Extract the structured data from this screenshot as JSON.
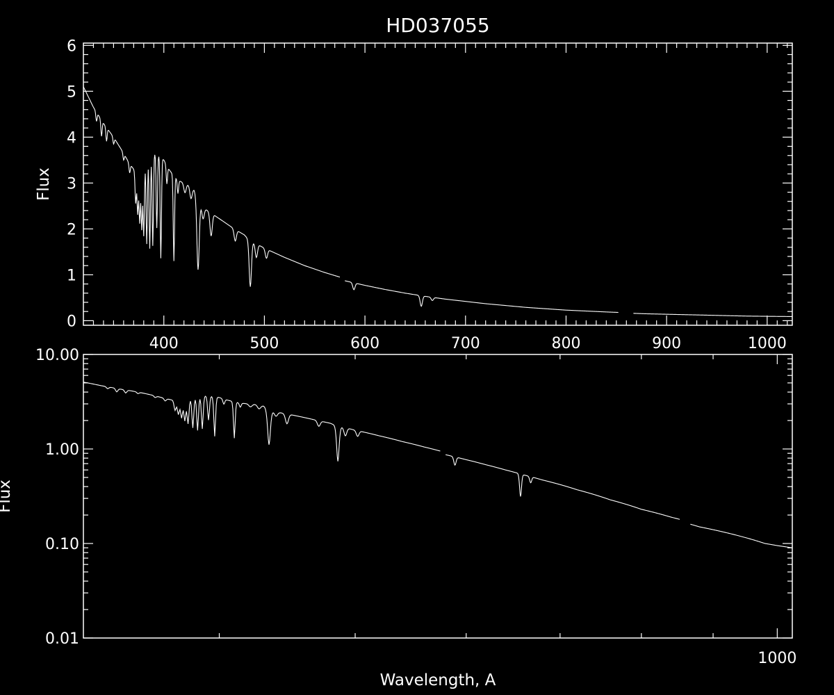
{
  "title": "HD037055",
  "colors": {
    "background": "#000000",
    "foreground": "#ffffff"
  },
  "chart_data": [
    {
      "type": "line",
      "name": "linear-panel",
      "title": "HD037055",
      "xlabel": "",
      "ylabel": "Flux",
      "xlim": [
        320,
        1025
      ],
      "ylim": [
        -0.1,
        6.05
      ],
      "yscale": "linear",
      "grid": false,
      "xticks": [
        {
          "value": 400,
          "label": "400"
        },
        {
          "value": 500,
          "label": "500"
        },
        {
          "value": 600,
          "label": "600"
        },
        {
          "value": 700,
          "label": "700"
        },
        {
          "value": 800,
          "label": "800"
        },
        {
          "value": 900,
          "label": "900"
        },
        {
          "value": 1000,
          "label": "1000"
        }
      ],
      "yticks": [
        {
          "value": 0,
          "label": "0"
        },
        {
          "value": 1,
          "label": "1"
        },
        {
          "value": 2,
          "label": "2"
        },
        {
          "value": 3,
          "label": "3"
        },
        {
          "value": 4,
          "label": "4"
        },
        {
          "value": 5,
          "label": "5"
        },
        {
          "value": 6,
          "label": "6"
        }
      ],
      "series": [
        {
          "segments": [
            [
              [
                320,
                5.1
              ],
              [
                330,
                4.65
              ],
              [
                340,
                4.3
              ],
              [
                350,
                4.0
              ],
              [
                360,
                3.65
              ],
              [
                365,
                3.45
              ],
              [
                370,
                3.3
              ],
              [
                375,
                3.2
              ],
              [
                380,
                3.35
              ],
              [
                385,
                3.55
              ],
              [
                390,
                3.65
              ],
              [
                395,
                3.6
              ],
              [
                400,
                3.5
              ],
              [
                405,
                3.3
              ],
              [
                410,
                3.15
              ],
              [
                415,
                3.05
              ],
              [
                420,
                3.0
              ],
              [
                425,
                2.95
              ],
              [
                430,
                2.85
              ],
              [
                435,
                2.55
              ],
              [
                440,
                2.45
              ],
              [
                450,
                2.3
              ],
              [
                460,
                2.15
              ],
              [
                470,
                2.0
              ],
              [
                480,
                1.87
              ],
              [
                485,
                1.75
              ],
              [
                490,
                1.7
              ],
              [
                500,
                1.58
              ],
              [
                520,
                1.38
              ],
              [
                540,
                1.2
              ],
              [
                560,
                1.05
              ],
              [
                575,
                0.95
              ]
            ],
            [
              [
                580,
                0.87
              ],
              [
                600,
                0.77
              ],
              [
                620,
                0.68
              ],
              [
                640,
                0.6
              ],
              [
                660,
                0.53
              ],
              [
                680,
                0.47
              ],
              [
                700,
                0.42
              ],
              [
                720,
                0.37
              ],
              [
                740,
                0.33
              ],
              [
                760,
                0.29
              ],
              [
                780,
                0.26
              ],
              [
                800,
                0.23
              ],
              [
                820,
                0.21
              ],
              [
                840,
                0.19
              ],
              [
                852,
                0.18
              ]
            ],
            [
              [
                867,
                0.16
              ],
              [
                880,
                0.15
              ],
              [
                900,
                0.14
              ],
              [
                920,
                0.13
              ],
              [
                940,
                0.12
              ],
              [
                960,
                0.11
              ],
              [
                980,
                0.1
              ],
              [
                1000,
                0.095
              ],
              [
                1025,
                0.09
              ]
            ]
          ]
        }
      ],
      "absorption_lines": [
        {
          "x": 333,
          "depth": 0.2
        },
        {
          "x": 338,
          "depth": 0.35
        },
        {
          "x": 343,
          "depth": 0.3
        },
        {
          "x": 350,
          "depth": 0.15
        },
        {
          "x": 360,
          "depth": 0.15
        },
        {
          "x": 366,
          "depth": 0.2
        },
        {
          "x": 372,
          "depth": 0.7
        },
        {
          "x": 374,
          "depth": 0.9
        },
        {
          "x": 376,
          "depth": 1.1
        },
        {
          "x": 378,
          "depth": 1.3
        },
        {
          "x": 380,
          "depth": 1.5
        },
        {
          "x": 383,
          "depth": 1.8
        },
        {
          "x": 386,
          "depth": 2.0
        },
        {
          "x": 389,
          "depth": 2.0
        },
        {
          "x": 393,
          "depth": 1.6
        },
        {
          "x": 397,
          "depth": 2.2
        },
        {
          "x": 403,
          "depth": 0.4
        },
        {
          "x": 410,
          "depth": 1.85
        },
        {
          "x": 414,
          "depth": 0.3
        },
        {
          "x": 421,
          "depth": 0.2
        },
        {
          "x": 427,
          "depth": 0.25
        },
        {
          "x": 434,
          "depth": 1.5
        },
        {
          "x": 439,
          "depth": 0.25
        },
        {
          "x": 447,
          "depth": 0.5
        },
        {
          "x": 471,
          "depth": 0.25
        },
        {
          "x": 486,
          "depth": 1.0
        },
        {
          "x": 492,
          "depth": 0.3
        },
        {
          "x": 502,
          "depth": 0.2
        },
        {
          "x": 589,
          "depth": 0.15
        },
        {
          "x": 656,
          "depth": 0.23
        },
        {
          "x": 667,
          "depth": 0.07
        }
      ]
    },
    {
      "type": "line",
      "name": "log-panel",
      "xlabel": "Wavelength, A",
      "ylabel": "Flux",
      "xscale": "log",
      "yscale": "log",
      "xlim": [
        320,
        1025
      ],
      "ylim": [
        0.01,
        10
      ],
      "grid": false,
      "xticks": [
        {
          "value": 1000,
          "label": "1000"
        }
      ],
      "xminorticks": [
        400,
        500,
        600,
        700,
        800,
        900
      ],
      "yticks": [
        {
          "value": 0.01,
          "label": "0.01"
        },
        {
          "value": 0.1,
          "label": "0.10"
        },
        {
          "value": 1,
          "label": "1.00"
        },
        {
          "value": 10,
          "label": "10.00"
        }
      ]
    }
  ]
}
